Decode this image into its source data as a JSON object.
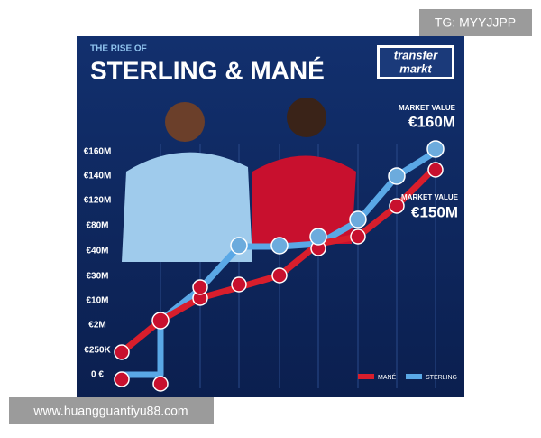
{
  "watermark": "TG: MYYJJPP",
  "header": {
    "kicker": "THE RISE OF",
    "title": "STERLING & MANÉ",
    "logo": [
      "transfer",
      "markt"
    ]
  },
  "y_labels": [
    "€160M",
    "€140M",
    "€120M",
    "€80M",
    "€40M",
    "€30M",
    "€10M",
    "€2M",
    "€250K",
    "0 €"
  ],
  "callouts": [
    {
      "label": "MARKET VALUE",
      "value": "€160M"
    },
    {
      "label": "MARKET VALUE",
      "value": "€150M"
    }
  ],
  "legend": [
    "MANÉ",
    "STERLING"
  ],
  "footer": "www.huangguantiyu88.com"
}
